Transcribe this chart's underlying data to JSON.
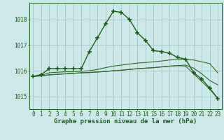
{
  "background_color": "#cce8e8",
  "grid_color": "#aacccc",
  "line_color_main": "#1a5c1a",
  "title": "Graphe pression niveau de la mer (hPa)",
  "xlim": [
    -0.5,
    23.5
  ],
  "ylim": [
    1014.5,
    1018.65
  ],
  "yticks": [
    1015,
    1016,
    1017,
    1018
  ],
  "xticks": [
    0,
    1,
    2,
    3,
    4,
    5,
    6,
    7,
    8,
    9,
    10,
    11,
    12,
    13,
    14,
    15,
    16,
    17,
    18,
    19,
    20,
    21,
    22,
    23
  ],
  "series": [
    {
      "x": [
        0,
        1,
        2,
        3,
        4,
        5,
        6,
        7,
        8,
        9,
        10,
        11,
        12,
        13,
        14,
        15,
        16,
        17,
        18,
        19,
        20,
        21,
        22,
        23
      ],
      "y": [
        1015.78,
        1015.85,
        1016.08,
        1016.08,
        1016.08,
        1016.08,
        1016.08,
        1016.75,
        1017.28,
        1017.82,
        1018.32,
        1018.28,
        1018.0,
        1017.48,
        1017.18,
        1016.78,
        1016.75,
        1016.68,
        1016.52,
        1016.45,
        1015.92,
        1015.68,
        1015.32,
        1014.92
      ],
      "color": "#1a5c1a",
      "lw": 1.0,
      "marker": "+",
      "ms": 4,
      "mew": 1.2
    },
    {
      "x": [
        0,
        1,
        2,
        3,
        4,
        5,
        6,
        7,
        8,
        9,
        10,
        11,
        12,
        13,
        14,
        15,
        16,
        17,
        18,
        19,
        20,
        21,
        22,
        23
      ],
      "y": [
        1015.78,
        1015.82,
        1015.92,
        1015.94,
        1015.96,
        1015.96,
        1015.98,
        1016.0,
        1016.05,
        1016.12,
        1016.18,
        1016.22,
        1016.26,
        1016.3,
        1016.32,
        1016.35,
        1016.38,
        1016.42,
        1016.45,
        1016.45,
        1016.42,
        1016.35,
        1016.28,
        1015.92
      ],
      "color": "#2a6e2a",
      "lw": 0.8,
      "marker": null,
      "ms": 0,
      "mew": 0
    },
    {
      "x": [
        0,
        1,
        2,
        3,
        4,
        5,
        6,
        7,
        8,
        9,
        10,
        11,
        12,
        13,
        14,
        15,
        16,
        17,
        18,
        19,
        20,
        21,
        22,
        23
      ],
      "y": [
        1015.78,
        1015.8,
        1015.84,
        1015.86,
        1015.88,
        1015.9,
        1015.92,
        1015.93,
        1015.95,
        1015.97,
        1016.0,
        1016.02,
        1016.05,
        1016.08,
        1016.1,
        1016.12,
        1016.15,
        1016.18,
        1016.2,
        1016.22,
        1016.1,
        1015.88,
        1015.62,
        1015.45
      ],
      "color": "#2a6e2a",
      "lw": 0.8,
      "marker": null,
      "ms": 0,
      "mew": 0
    },
    {
      "x": [
        0,
        1,
        2,
        3,
        4,
        5,
        6,
        7,
        8,
        9,
        10,
        11,
        12,
        13,
        14,
        15,
        16,
        17,
        18,
        19,
        20,
        21,
        22,
        23
      ],
      "y": [
        1015.78,
        1015.8,
        1015.84,
        1015.86,
        1015.88,
        1015.9,
        1015.92,
        1015.93,
        1015.95,
        1015.97,
        1016.0,
        1016.02,
        1016.05,
        1016.08,
        1016.1,
        1016.12,
        1016.15,
        1016.18,
        1016.2,
        1016.18,
        1015.88,
        1015.58,
        1015.28,
        1014.92
      ],
      "color": "#336633",
      "lw": 0.8,
      "marker": null,
      "ms": 0,
      "mew": 0
    }
  ],
  "title_fontsize": 6.5,
  "tick_fontsize": 5.5
}
